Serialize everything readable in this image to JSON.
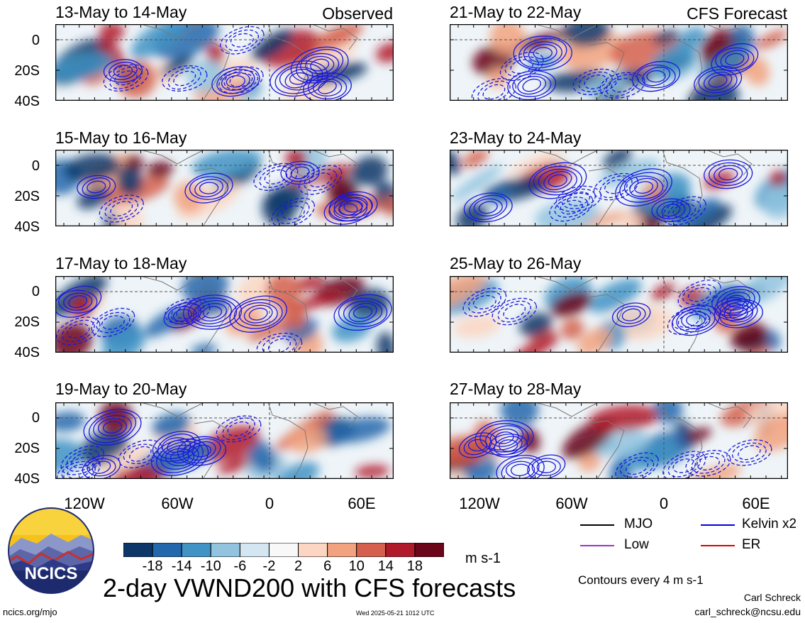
{
  "panels": [
    {
      "title": "13-May to 14-May",
      "tag": "Observed"
    },
    {
      "title": "21-May to 22-May",
      "tag": "CFS Forecast"
    },
    {
      "title": "15-May to 16-May",
      "tag": ""
    },
    {
      "title": "23-May to 24-May",
      "tag": ""
    },
    {
      "title": "17-May to 18-May",
      "tag": ""
    },
    {
      "title": "25-May to 26-May",
      "tag": ""
    },
    {
      "title": "19-May to 20-May",
      "tag": ""
    },
    {
      "title": "27-May to 28-May",
      "tag": ""
    }
  ],
  "lat_labels": [
    "0",
    "20S",
    "40S"
  ],
  "lon_labels": [
    "120W",
    "60W",
    "0",
    "60E"
  ],
  "colorbar": {
    "ticks": [
      "-18",
      "-14",
      "-10",
      "-6",
      "-2",
      "2",
      "6",
      "10",
      "14",
      "18"
    ],
    "colors": [
      "#0d3768",
      "#2367ad",
      "#4093c4",
      "#93c4df",
      "#d3e6f1",
      "#f8f8f8",
      "#fcd6c2",
      "#f2a27f",
      "#d5604e",
      "#b11a2b",
      "#6b0519"
    ],
    "units": "m s-1"
  },
  "main_title": "2-day VWND200 with CFS forecasts",
  "legend": {
    "items": [
      {
        "label": "MJO",
        "color": "#000000"
      },
      {
        "label": "Kelvin x2",
        "color": "#0000dd"
      },
      {
        "label": "Low",
        "color": "#9933cc"
      },
      {
        "label": "ER",
        "color": "#dd0000"
      }
    ],
    "contour_note": "Contours every 4 m s-1"
  },
  "credits": {
    "author": "Carl Schreck",
    "email": "carl_schreck@ncsu.edu",
    "site": "ncics.org/mjo",
    "timestamp": "Wed 2025-05-21 1012 UTC"
  },
  "logo": {
    "text": "NCICS"
  }
}
